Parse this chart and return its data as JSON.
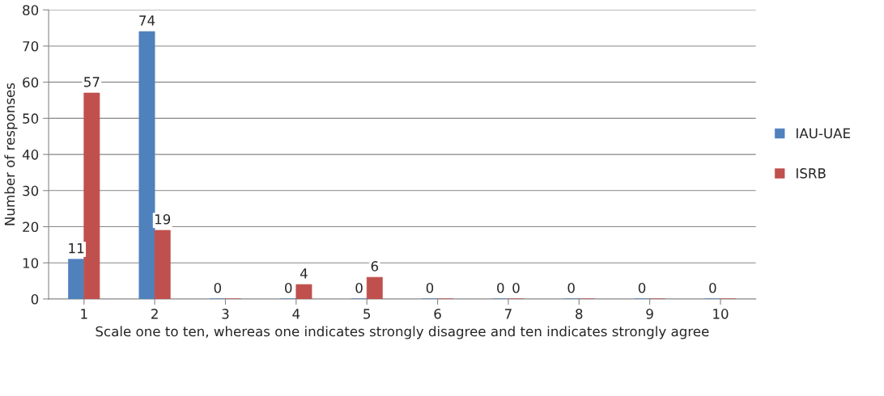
{
  "chart_data": {
    "type": "bar",
    "xlabel": "Scale one to ten, whereas one indicates strongly disagree and ten indicates strongly agree",
    "ylabel": "Number of responses",
    "categories": [
      "1",
      "2",
      "3",
      "4",
      "5",
      "6",
      "7",
      "8",
      "9",
      "10"
    ],
    "series": [
      {
        "name": "IAU-UAE",
        "color": "#4f81bd",
        "values": [
          11,
          74,
          0,
          0,
          0,
          0,
          0,
          0,
          0,
          0
        ],
        "value_labels": [
          "11",
          "74",
          "0",
          "0",
          "0",
          "0",
          "0",
          "0",
          "0",
          "0"
        ]
      },
      {
        "name": "ISRB",
        "color": "#c0504d",
        "values": [
          57,
          19,
          0,
          4,
          6,
          0,
          0,
          0,
          0,
          0
        ],
        "value_labels": [
          "57",
          "19",
          null,
          "4",
          "6",
          null,
          "0",
          null,
          null,
          null
        ]
      }
    ],
    "ylim": [
      0,
      80
    ],
    "yticks": [
      0,
      10,
      20,
      30,
      40,
      50,
      60,
      70,
      80
    ],
    "grid": "y",
    "legend": "right"
  }
}
